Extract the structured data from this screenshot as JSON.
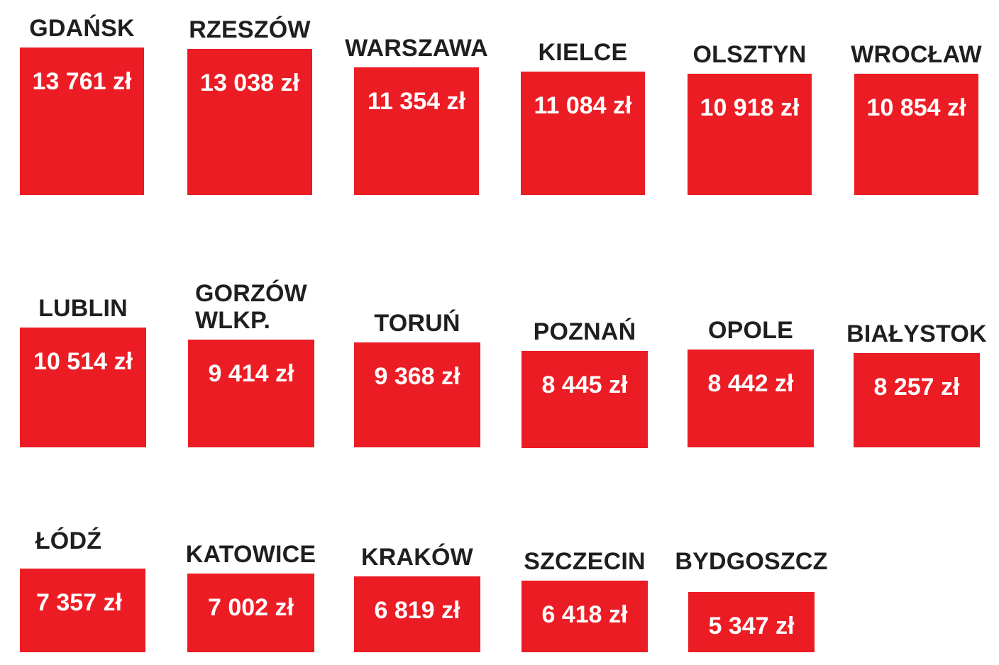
{
  "chart_data": {
    "type": "table",
    "unit": "zł",
    "cities": [
      {
        "name": "GDAŃSK",
        "label": "13 761 zł",
        "value": 13761
      },
      {
        "name": "RZESZÓW",
        "label": "13 038 zł",
        "value": 13038
      },
      {
        "name": "WARSZAWA",
        "label": "11 354 zł",
        "value": 11354
      },
      {
        "name": "KIELCE",
        "label": "11 084 zł",
        "value": 11084
      },
      {
        "name": "OLSZTYN",
        "label": "10 918 zł",
        "value": 10918
      },
      {
        "name": "WROCŁAW",
        "label": "10 854 zł",
        "value": 10854
      },
      {
        "name": "LUBLIN",
        "label": "10 514 zł",
        "value": 10514
      },
      {
        "name": "GORZÓW WLKP.",
        "label": "9 414 zł",
        "value": 9414
      },
      {
        "name": "TORUŃ",
        "label": "9 368 zł",
        "value": 9368
      },
      {
        "name": "POZNAŃ",
        "label": "8 445 zł",
        "value": 8445
      },
      {
        "name": "OPOLE",
        "label": "8 442 zł",
        "value": 8442
      },
      {
        "name": "BIAŁYSTOK",
        "label": "8 257 zł",
        "value": 8257
      },
      {
        "name": "ŁÓDŹ",
        "label": "7 357 zł",
        "value": 7357
      },
      {
        "name": "KATOWICE",
        "label": "7 002 zł",
        "value": 7002
      },
      {
        "name": "KRAKÓW",
        "label": "6 819 zł",
        "value": 6819
      },
      {
        "name": "SZCZECIN",
        "label": "6 418 zł",
        "value": 6418
      },
      {
        "name": "BYDGOSZCZ",
        "label": "5 347 zł",
        "value": 5347
      }
    ]
  },
  "colors": {
    "tile": "#ec1c24",
    "tile_text": "#ffffff",
    "city_text": "#1f1f1f"
  }
}
